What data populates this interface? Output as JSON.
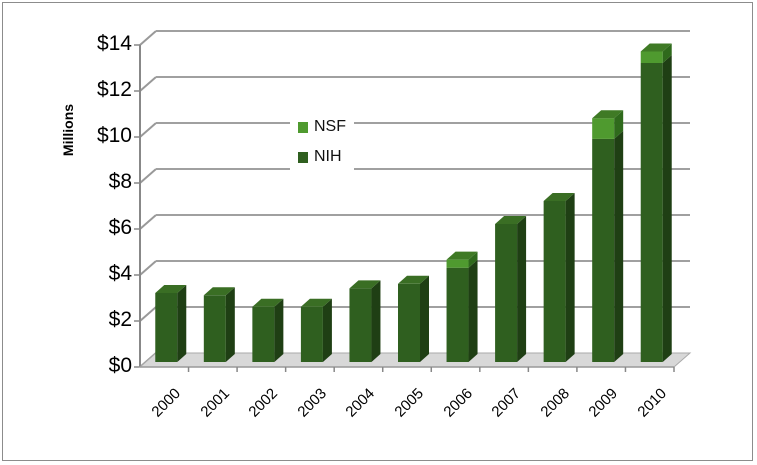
{
  "chart_data": {
    "type": "bar",
    "stacked": true,
    "style": "3d-column",
    "title": "",
    "xlabel": "",
    "ylabel": "Millions",
    "ylim": [
      0,
      14
    ],
    "yticks": [
      "$0",
      "$2",
      "$4",
      "$6",
      "$8",
      "$10",
      "$12",
      "$14"
    ],
    "ytick_values": [
      0,
      2,
      4,
      6,
      8,
      10,
      12,
      14
    ],
    "categories": [
      "2000",
      "2001",
      "2002",
      "2003",
      "2004",
      "2005",
      "2006",
      "2007",
      "2008",
      "2009",
      "2010"
    ],
    "series": [
      {
        "name": "NIH",
        "color": "#2f5f1f",
        "values": [
          3.0,
          2.9,
          2.4,
          2.4,
          3.2,
          3.4,
          4.1,
          6.0,
          7.0,
          9.7,
          13.0
        ]
      },
      {
        "name": "NSF",
        "color": "#4f9a2f",
        "values": [
          0,
          0,
          0,
          0,
          0,
          0,
          0.35,
          0,
          0,
          0.9,
          0.5
        ]
      }
    ],
    "legend": {
      "position": "upper-left-inside",
      "entries": [
        "NSF",
        "NIH"
      ]
    },
    "grid": true
  },
  "legend": {
    "items": [
      {
        "label": "NSF",
        "color": "#4f9a2f"
      },
      {
        "label": "NIH",
        "color": "#2f5f1f"
      }
    ]
  },
  "axis": {
    "ylabel": "Millions"
  }
}
